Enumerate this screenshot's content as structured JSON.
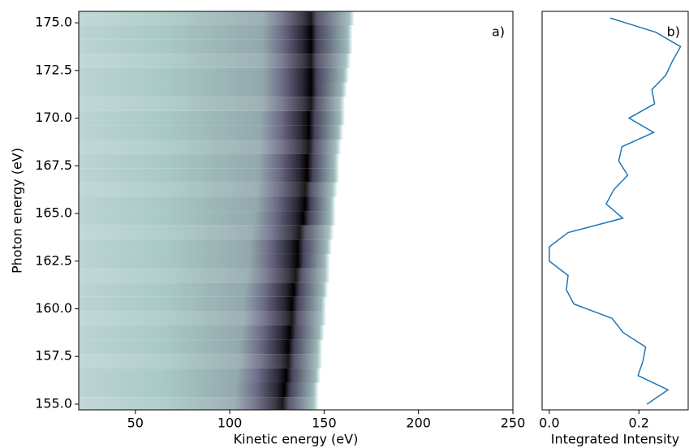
{
  "chart_data": [
    {
      "type": "heatmap",
      "xlabel": "Kinetic energy (eV)",
      "ylabel": "Photon energy (eV)",
      "annotation": "a)",
      "xlim": [
        20,
        250
      ],
      "ylim": [
        154.7,
        175.6
      ],
      "xticks": [
        50,
        100,
        150,
        200,
        250
      ],
      "yticks": [
        {
          "value": 155,
          "label": "155.0"
        },
        {
          "value": 157.5,
          "label": "157.5"
        },
        {
          "value": 160,
          "label": "160.0"
        },
        {
          "value": 162.5,
          "label": "162.5"
        },
        {
          "value": 165,
          "label": "165.0"
        },
        {
          "value": 167.5,
          "label": "167.5"
        },
        {
          "value": 170,
          "label": "170.0"
        },
        {
          "value": 172.5,
          "label": "172.5"
        },
        {
          "value": 175,
          "label": "175.0"
        }
      ],
      "y": [
        155,
        155.75,
        156.5,
        157.25,
        158,
        158.75,
        159.5,
        160.25,
        161,
        161.75,
        162.5,
        163.25,
        164,
        164.75,
        165.5,
        166.25,
        167,
        167.75,
        168.5,
        169.25,
        170,
        170.75,
        171.5,
        172.25,
        173,
        173.75,
        174.5,
        175.25
      ],
      "peak": [
        128,
        129,
        130,
        131,
        131,
        132,
        133,
        133,
        134,
        135,
        136,
        136,
        137,
        139,
        140,
        140,
        141,
        141,
        142,
        142,
        142,
        143,
        143,
        143,
        143,
        143,
        143,
        143
      ],
      "cutoff": [
        147,
        147,
        148,
        149,
        149,
        150,
        151,
        151,
        152,
        153,
        153,
        154,
        155,
        156,
        156,
        157,
        158,
        158,
        159,
        160,
        161,
        161,
        162,
        163,
        164,
        165,
        165,
        166
      ]
    },
    {
      "type": "line",
      "xlabel": "Integrated Intensity",
      "annotation": "b)",
      "color": "#1f77b4",
      "xlim": [
        -0.016,
        0.31
      ],
      "ylim": [
        154.7,
        175.6
      ],
      "xticks": [
        {
          "value": 0,
          "label": "0.0"
        },
        0.2
      ],
      "y": [
        155,
        155.75,
        156.5,
        157.25,
        158,
        158.75,
        159.5,
        160.25,
        161,
        161.75,
        162.5,
        163.25,
        164,
        164.75,
        165.5,
        166.25,
        167,
        167.75,
        168.5,
        169.25,
        170,
        170.75,
        171.5,
        172.25,
        173,
        173.75,
        174.5,
        175.25
      ],
      "values": [
        0.218,
        0.265,
        0.198,
        0.209,
        0.215,
        0.165,
        0.14,
        0.055,
        0.038,
        0.042,
        0.0,
        0.0,
        0.042,
        0.164,
        0.127,
        0.144,
        0.175,
        0.155,
        0.162,
        0.233,
        0.178,
        0.235,
        0.229,
        0.26,
        0.275,
        0.293,
        0.238,
        0.136
      ]
    }
  ]
}
